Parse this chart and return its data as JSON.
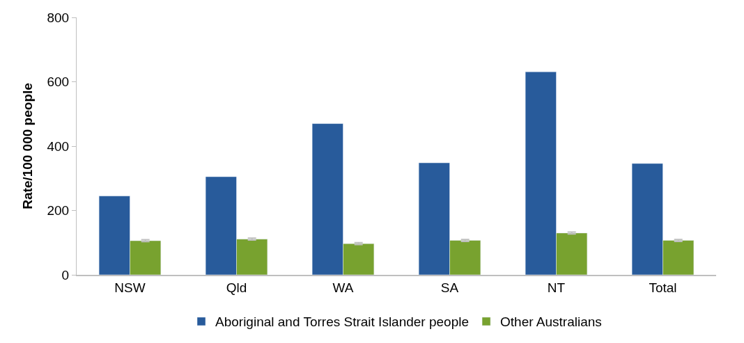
{
  "chart_data": {
    "type": "bar",
    "ylabel": "Rate/100 000 people",
    "categories": [
      "NSW",
      "Qld",
      "WA",
      "SA",
      "NT",
      "Total"
    ],
    "series": [
      {
        "name": "Aboriginal and Torres Strait Islander people",
        "color": "#285b9b",
        "values": [
          245,
          305,
          470,
          348,
          631,
          346
        ]
      },
      {
        "name": "Other Australians",
        "color": "#78a22f",
        "values": [
          106,
          111,
          97,
          107,
          130,
          107
        ],
        "errors": [
          3,
          3,
          3,
          3,
          3,
          3
        ]
      }
    ],
    "ylim": [
      0,
      800
    ],
    "yticks": [
      0,
      200,
      400,
      600,
      800
    ],
    "legend": "bottom"
  }
}
